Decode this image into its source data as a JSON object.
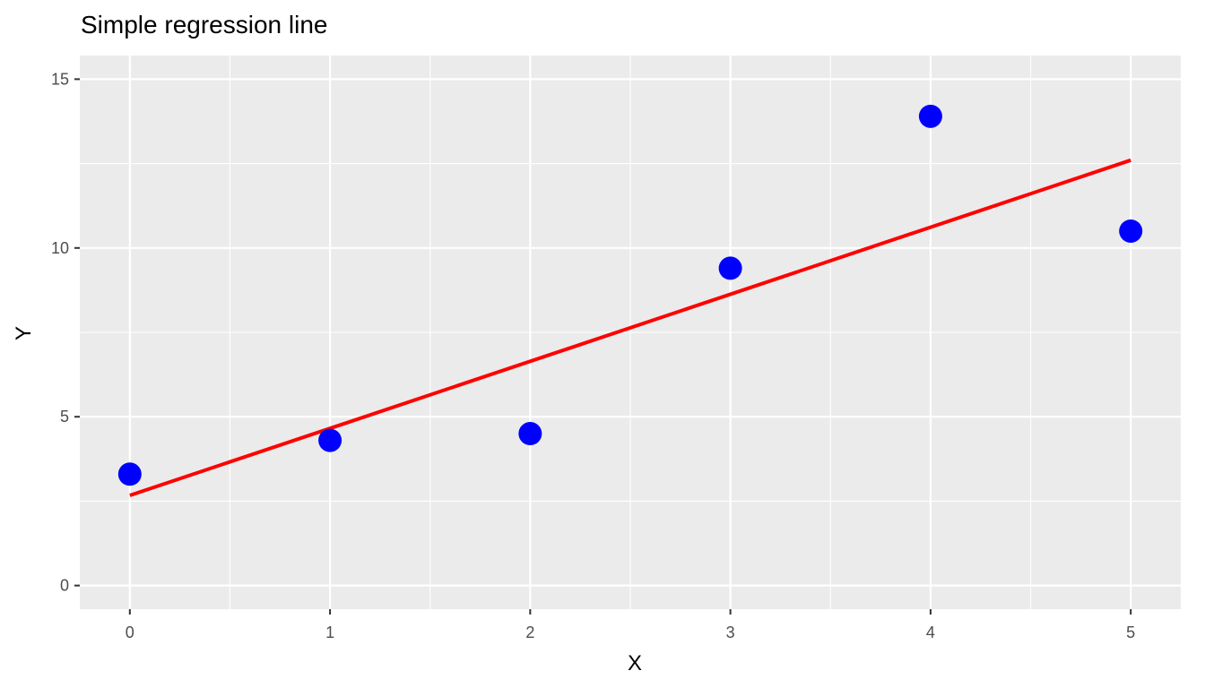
{
  "chart_data": {
    "type": "scatter",
    "title": "Simple regression line",
    "xlabel": "X",
    "ylabel": "Y",
    "xlim": [
      -0.25,
      5.25
    ],
    "ylim": [
      -0.7,
      15.7
    ],
    "x_ticks": [
      0,
      1,
      2,
      3,
      4,
      5
    ],
    "y_ticks": [
      0,
      5,
      10,
      15
    ],
    "x_tick_labels": [
      "0",
      "1",
      "2",
      "3",
      "4",
      "5"
    ],
    "y_tick_labels": [
      "0",
      "5",
      "10",
      "15"
    ],
    "grid": true,
    "series": [
      {
        "type": "scatter",
        "color": "#0000ff",
        "x": [
          0,
          1,
          2,
          3,
          4,
          5
        ],
        "y": [
          3.3,
          4.3,
          4.5,
          9.4,
          13.9,
          10.5
        ]
      },
      {
        "type": "line",
        "color": "#ff0000",
        "x": [
          0,
          5
        ],
        "y": [
          2.67,
          12.6
        ]
      }
    ],
    "panel_background": "#ebebeb",
    "grid_color": "#ffffff"
  }
}
